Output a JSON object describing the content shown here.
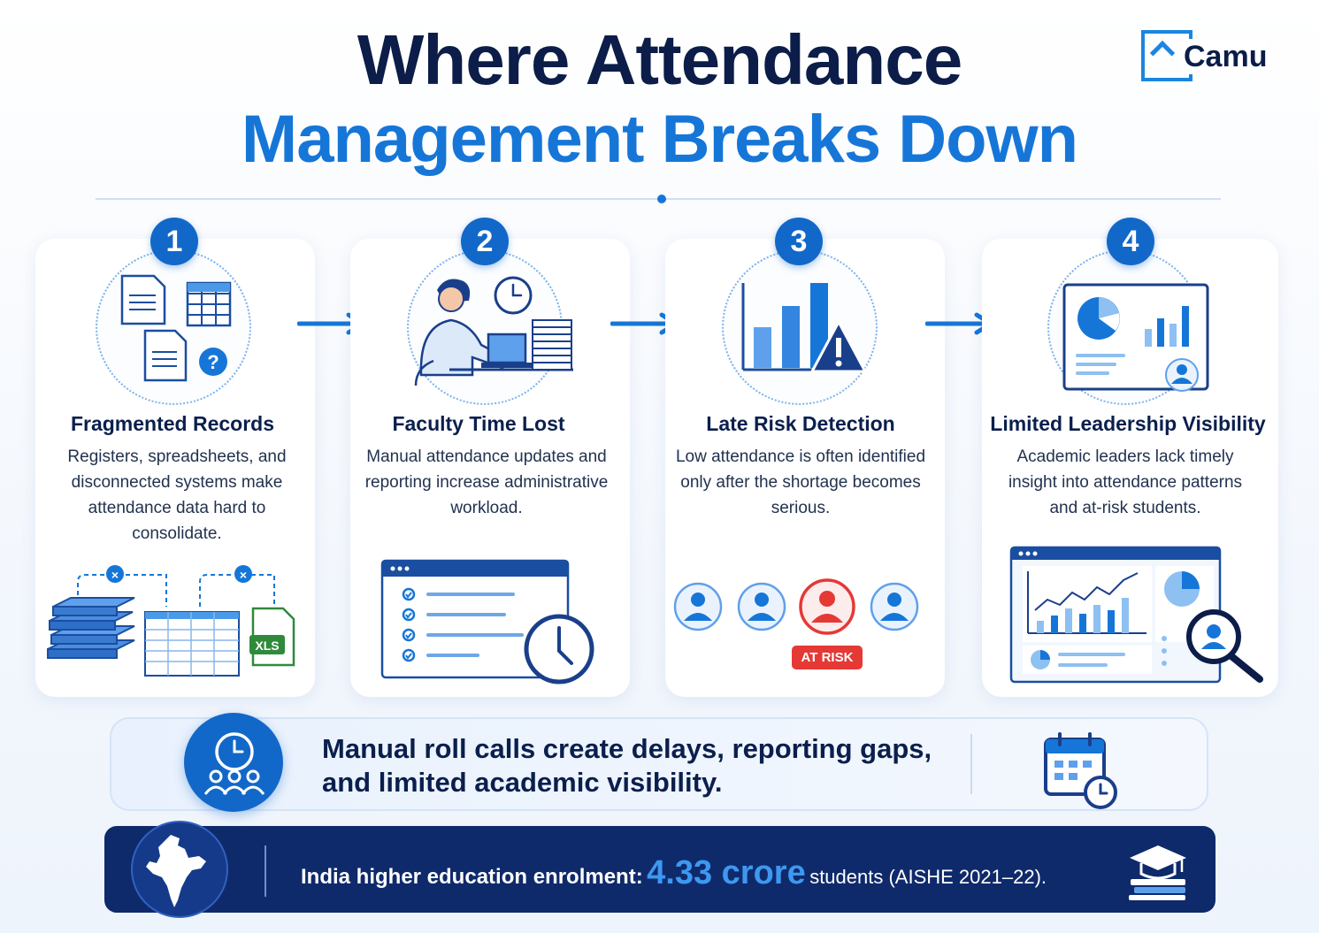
{
  "title": {
    "line1": "Where Attendance",
    "line2": "Management Breaks Down"
  },
  "logo": {
    "text": "Camu"
  },
  "cards": [
    {
      "number": "1",
      "title": "Fragmented Records",
      "description": "Registers, spreadsheets, and disconnected systems make attendance data hard to consolidate.",
      "file_label": "XLS",
      "icon": "documents-spreadsheet-question-icon"
    },
    {
      "number": "2",
      "title": "Faculty Time Lost",
      "description": "Manual attendance updates and reporting increase administrative workload.",
      "icon": "faculty-laptop-clock-icon"
    },
    {
      "number": "3",
      "title": "Late Risk Detection",
      "description": "Low attendance is often identified only after the shortage becomes serious.",
      "risk_label": "AT RISK",
      "icon": "bar-chart-warning-icon"
    },
    {
      "number": "4",
      "title": "Limited Leadership Visibility",
      "description": "Academic leaders lack timely insight into attendance patterns and at-risk students.",
      "icon": "dashboard-pie-chart-icon"
    }
  ],
  "banner": {
    "line1": "Manual roll calls create delays, reporting gaps,",
    "line2": "and limited academic visibility."
  },
  "footer": {
    "label": "India higher education enrolment:",
    "value": "4.33 crore",
    "suffix": "students (AISHE 2021–22)."
  },
  "colors": {
    "navy": "#0b1d48",
    "accent_blue": "#1676d8",
    "badge_blue": "#1268c9",
    "footer_bg": "#0f2a6b",
    "risk_red": "#e53935"
  }
}
